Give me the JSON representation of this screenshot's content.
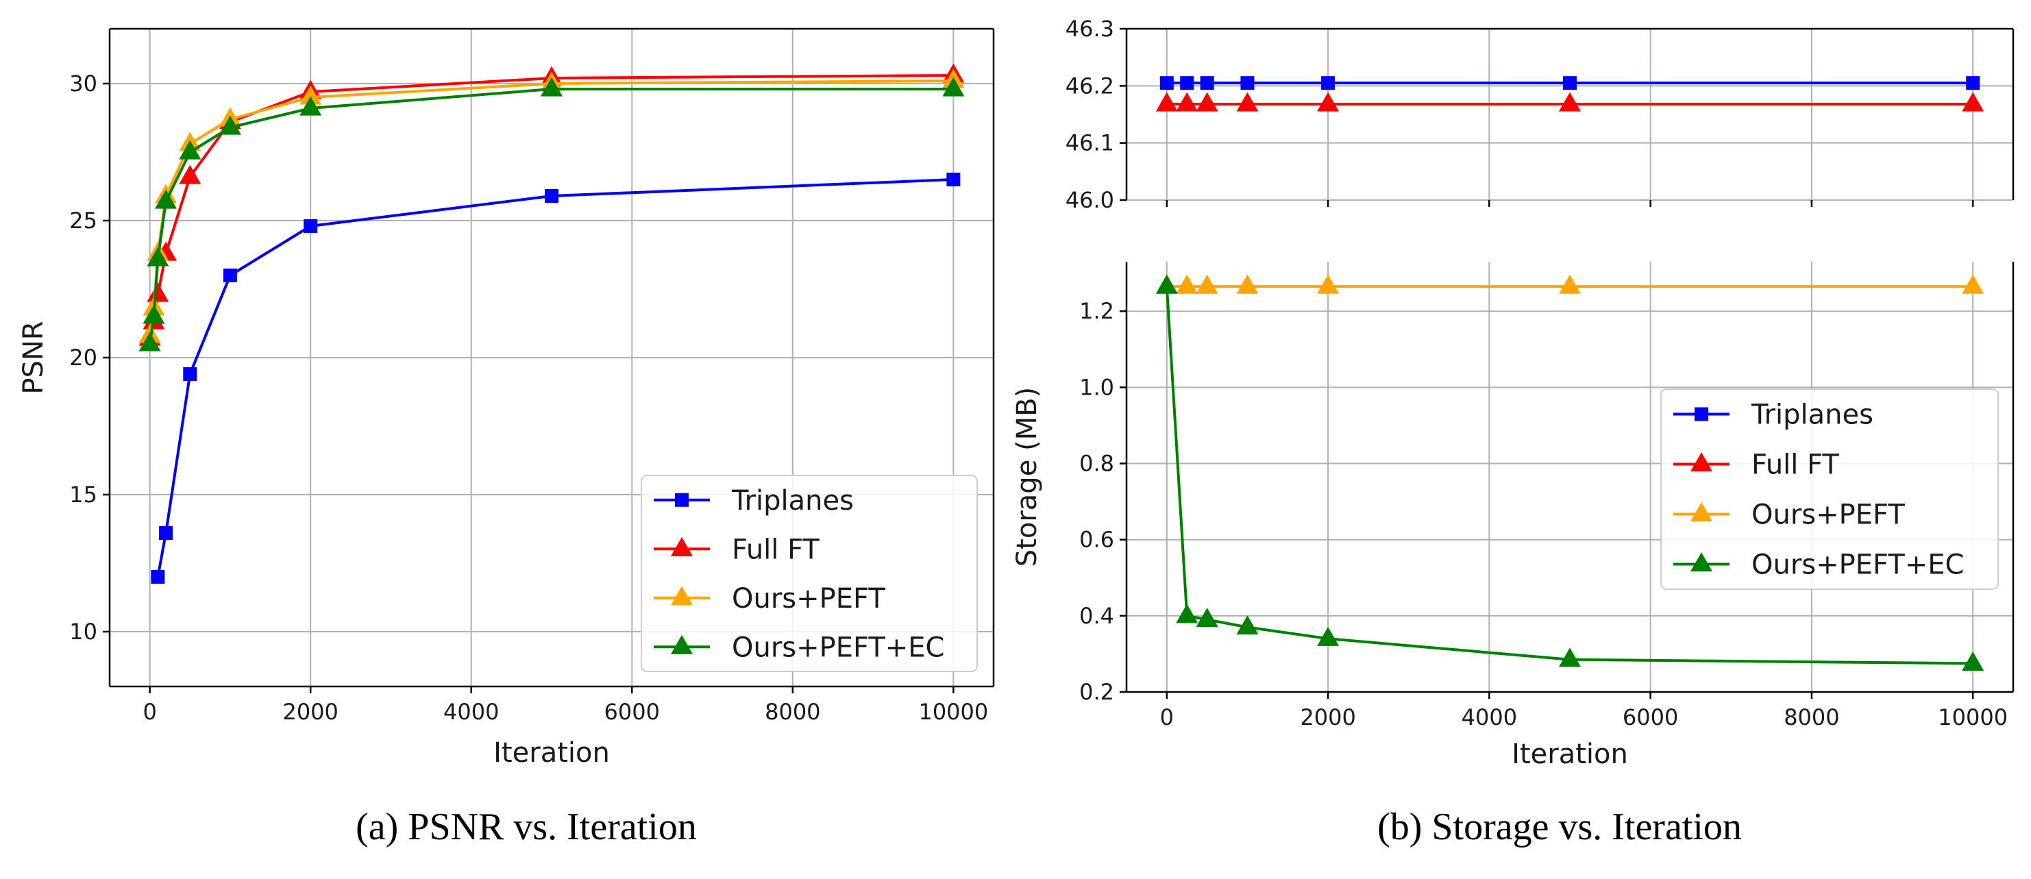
{
  "colors": {
    "Triplanes": "#0000ff",
    "Full FT": "#ff0000",
    "Ours+PEFT": "#ffa500",
    "Ours+PEFT+EC": "#008000",
    "grid": "#b0b0b0",
    "axis": "#000000"
  },
  "chart_data": [
    {
      "type": "line",
      "caption": "(a) PSNR vs. Iteration",
      "xlabel": "Iteration",
      "ylabel": "PSNR",
      "xlim": [
        -500,
        10500
      ],
      "ylim": [
        8,
        32
      ],
      "xticks": [
        0,
        2000,
        4000,
        6000,
        8000,
        10000
      ],
      "yticks": [
        10,
        15,
        20,
        25,
        30
      ],
      "grid": true,
      "legend_position": "lower-right",
      "series": [
        {
          "name": "Triplanes",
          "marker": "square",
          "x": [
            100,
            200,
            500,
            1000,
            2000,
            5000,
            10000
          ],
          "y": [
            12.0,
            13.6,
            19.4,
            23.0,
            24.8,
            25.9,
            26.5
          ]
        },
        {
          "name": "Full FT",
          "marker": "triangle",
          "x": [
            0,
            50,
            100,
            200,
            500,
            1000,
            2000,
            5000,
            10000
          ],
          "y": [
            20.7,
            21.3,
            22.3,
            23.8,
            26.6,
            28.6,
            29.7,
            30.2,
            30.3
          ]
        },
        {
          "name": "Ours+PEFT",
          "marker": "triangle",
          "x": [
            0,
            50,
            100,
            200,
            500,
            1000,
            2000,
            5000,
            10000
          ],
          "y": [
            20.8,
            21.8,
            23.8,
            25.9,
            27.8,
            28.7,
            29.5,
            30.0,
            30.1
          ]
        },
        {
          "name": "Ours+PEFT+EC",
          "marker": "triangle",
          "x": [
            0,
            50,
            100,
            200,
            500,
            1000,
            2000,
            5000,
            10000
          ],
          "y": [
            20.5,
            21.5,
            23.6,
            25.7,
            27.5,
            28.4,
            29.1,
            29.8,
            29.8
          ]
        }
      ]
    },
    {
      "type": "line",
      "caption": "(b) Storage vs. Iteration",
      "xlabel": "Iteration",
      "ylabel": "Storage (MB)",
      "xlim": [
        -500,
        10500
      ],
      "broken_axis": true,
      "upper_ylim": [
        46.0,
        46.3
      ],
      "upper_yticks": [
        46.0,
        46.1,
        46.2,
        46.3
      ],
      "lower_ylim": [
        0.2,
        1.33
      ],
      "lower_yticks": [
        0.2,
        0.4,
        0.6,
        0.8,
        1.0,
        1.2
      ],
      "xticks": [
        0,
        2000,
        4000,
        6000,
        8000,
        10000
      ],
      "grid": true,
      "legend_position": "center-right",
      "series": [
        {
          "name": "Triplanes",
          "marker": "square",
          "panel": "upper",
          "x": [
            0,
            250,
            500,
            1000,
            2000,
            5000,
            10000
          ],
          "y": [
            46.205,
            46.205,
            46.205,
            46.205,
            46.205,
            46.205,
            46.205
          ]
        },
        {
          "name": "Full FT",
          "marker": "triangle",
          "panel": "upper",
          "x": [
            0,
            250,
            500,
            1000,
            2000,
            5000,
            10000
          ],
          "y": [
            46.168,
            46.168,
            46.168,
            46.168,
            46.168,
            46.168,
            46.168
          ]
        },
        {
          "name": "Ours+PEFT",
          "marker": "triangle",
          "panel": "lower",
          "x": [
            0,
            250,
            500,
            1000,
            2000,
            5000,
            10000
          ],
          "y": [
            1.265,
            1.265,
            1.265,
            1.265,
            1.265,
            1.265,
            1.265
          ]
        },
        {
          "name": "Ours+PEFT+EC",
          "marker": "triangle",
          "panel": "lower",
          "x": [
            0,
            250,
            500,
            1000,
            2000,
            5000,
            10000
          ],
          "y": [
            1.265,
            0.4,
            0.39,
            0.37,
            0.34,
            0.285,
            0.275
          ]
        }
      ]
    }
  ]
}
